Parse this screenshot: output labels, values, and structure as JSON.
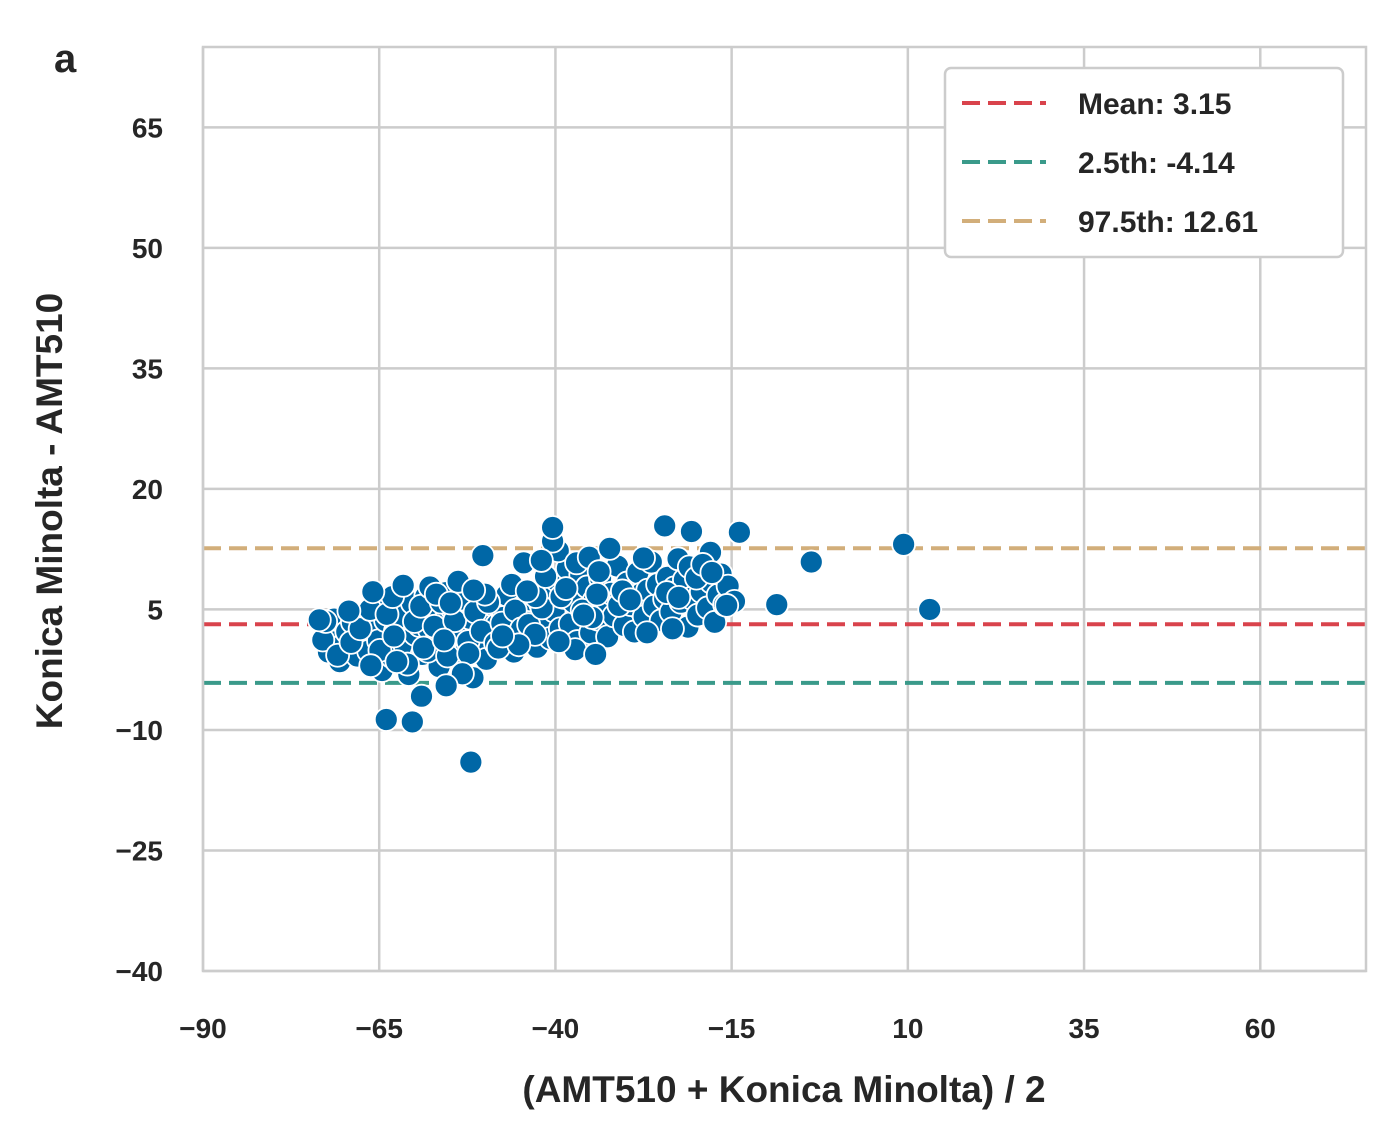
{
  "panel_label": "a",
  "chart_data": {
    "type": "scatter",
    "title": "",
    "xlabel": "(AMT510 + Konica Minolta) / 2",
    "ylabel": "Konica Minolta - AMT510",
    "xlim": [
      -90,
      75
    ],
    "ylim": [
      -40,
      75
    ],
    "xticks": [
      -90,
      -65,
      -40,
      -15,
      10,
      35,
      60
    ],
    "xtick_labels": [
      "−90",
      "−65",
      "−40",
      "−15",
      "10",
      "35",
      "60"
    ],
    "yticks": [
      -40,
      -25,
      -10,
      5,
      20,
      35,
      50,
      65
    ],
    "ytick_labels": [
      "−40",
      "−25",
      "−10",
      "5",
      "20",
      "35",
      "50",
      "65"
    ],
    "grid": true,
    "legend_position": "top-right",
    "point_color": "#0067a6",
    "reference_lines": [
      {
        "label": "Mean: 3.15",
        "y": 3.15,
        "color": "#d9434c",
        "style": "dashed"
      },
      {
        "label": "2.5th: -4.14",
        "y": -4.14,
        "color": "#3a9a8a",
        "style": "dashed"
      },
      {
        "label": "97.5th: 12.61",
        "y": 12.61,
        "color": "#d2ae7a",
        "style": "dashed"
      }
    ],
    "points": [
      [
        -72.2,
        -0.3
      ],
      [
        -71.5,
        1.8
      ],
      [
        -71.4,
        3.8
      ],
      [
        -70.6,
        -1.5
      ],
      [
        -70.2,
        0.5
      ],
      [
        -69.6,
        2.2
      ],
      [
        -68.8,
        3.4
      ],
      [
        -68.1,
        -0.8
      ],
      [
        -67.5,
        1.6
      ],
      [
        -67.0,
        4.2
      ],
      [
        -66.5,
        -0.2
      ],
      [
        -66.0,
        2.9
      ],
      [
        -65.6,
        6.4
      ],
      [
        -65.1,
        1.1
      ],
      [
        -64.6,
        -2.6
      ],
      [
        -64.1,
        3.6
      ],
      [
        -63.6,
        5.2
      ],
      [
        -63.2,
        -0.9
      ],
      [
        -62.7,
        2.3
      ],
      [
        -62.3,
        7.2
      ],
      [
        -61.8,
        4.1
      ],
      [
        -61.3,
        0.4
      ],
      [
        -60.8,
        -3.1
      ],
      [
        -60.3,
        5.8
      ],
      [
        -59.9,
        1.9
      ],
      [
        -59.3,
        3.0
      ],
      [
        -58.9,
        -0.6
      ],
      [
        -58.4,
        6.6
      ],
      [
        -57.9,
        2.5
      ],
      [
        -57.4,
        4.6
      ],
      [
        -57.0,
        0.9
      ],
      [
        -56.5,
        -2.1
      ],
      [
        -56.0,
        3.3
      ],
      [
        -55.5,
        7.1
      ],
      [
        -55.0,
        1.5
      ],
      [
        -54.6,
        5.0
      ],
      [
        -54.0,
        -0.4
      ],
      [
        -53.6,
        2.7
      ],
      [
        -53.1,
        4.9
      ],
      [
        -52.6,
        0.1
      ],
      [
        -52.1,
        3.9
      ],
      [
        -51.7,
        -3.5
      ],
      [
        -51.2,
        6.0
      ],
      [
        -50.7,
        1.3
      ],
      [
        -50.2,
        4.4
      ],
      [
        -49.8,
        -1.2
      ],
      [
        -49.3,
        2.0
      ],
      [
        -48.8,
        5.5
      ],
      [
        -48.3,
        3.1
      ],
      [
        -47.9,
        0.6
      ],
      [
        -47.4,
        4.0
      ],
      [
        -46.9,
        6.8
      ],
      [
        -46.4,
        2.4
      ],
      [
        -45.9,
        -0.3
      ],
      [
        -45.5,
        3.7
      ],
      [
        -45.0,
        5.1
      ],
      [
        -44.5,
        1.8
      ],
      [
        -44.0,
        4.3
      ],
      [
        -43.6,
        6.2
      ],
      [
        -43.1,
        2.9
      ],
      [
        -42.6,
        0.3
      ],
      [
        -42.1,
        5.7
      ],
      [
        -41.7,
        3.5
      ],
      [
        -41.2,
        7.5
      ],
      [
        -40.7,
        1.4
      ],
      [
        -40.2,
        4.8
      ],
      [
        -39.8,
        8.6
      ],
      [
        -39.3,
        2.6
      ],
      [
        -38.8,
        6.5
      ],
      [
        -38.3,
        10.1
      ],
      [
        -37.9,
        3.2
      ],
      [
        -37.4,
        5.9
      ],
      [
        -36.9,
        1.0
      ],
      [
        -36.4,
        9.3
      ],
      [
        -36.0,
        4.5
      ],
      [
        -35.5,
        7.8
      ],
      [
        -35.0,
        2.1
      ],
      [
        -34.5,
        6.1
      ],
      [
        -34.0,
        3.8
      ],
      [
        -33.6,
        8.9
      ],
      [
        -33.1,
        5.3
      ],
      [
        -32.6,
        1.6
      ],
      [
        -32.1,
        7.0
      ],
      [
        -31.7,
        4.2
      ],
      [
        -31.2,
        10.4
      ],
      [
        -30.7,
        6.7
      ],
      [
        -30.2,
        3.0
      ],
      [
        -29.8,
        8.3
      ],
      [
        -29.3,
        5.6
      ],
      [
        -28.8,
        2.2
      ],
      [
        -28.3,
        9.6
      ],
      [
        -27.9,
        6.9
      ],
      [
        -27.4,
        4.1
      ],
      [
        -26.9,
        7.4
      ],
      [
        -26.4,
        10.9
      ],
      [
        -26.0,
        5.4
      ],
      [
        -25.5,
        8.1
      ],
      [
        -25.0,
        3.6
      ],
      [
        -24.5,
        6.3
      ],
      [
        -24.1,
        9.0
      ],
      [
        -23.6,
        4.7
      ],
      [
        -23.1,
        7.7
      ],
      [
        -22.6,
        11.3
      ],
      [
        -22.2,
        5.9
      ],
      [
        -21.7,
        8.7
      ],
      [
        -21.2,
        2.8
      ],
      [
        -20.7,
        6.4
      ],
      [
        -20.3,
        9.8
      ],
      [
        -19.8,
        4.3
      ],
      [
        -19.3,
        7.2
      ],
      [
        -18.8,
        10.6
      ],
      [
        -18.4,
        5.2
      ],
      [
        -17.9,
        8.4
      ],
      [
        -17.4,
        3.4
      ],
      [
        -16.9,
        6.8
      ],
      [
        -16.5,
        9.4
      ],
      [
        -16.0,
        5.6
      ],
      [
        -15.5,
        7.9
      ],
      [
        -14.6,
        6.0
      ],
      [
        -13.9,
        14.6
      ],
      [
        -73.0,
        1.2
      ],
      [
        -72.6,
        3.5
      ],
      [
        -70.9,
        -0.7
      ],
      [
        -69.0,
        0.9
      ],
      [
        -67.7,
        2.6
      ],
      [
        -66.3,
        5.0
      ],
      [
        -64.9,
        -0.1
      ],
      [
        -63.9,
        4.4
      ],
      [
        -62.9,
        1.7
      ],
      [
        -61.0,
        -1.8
      ],
      [
        -60.0,
        3.5
      ],
      [
        -59.1,
        5.4
      ],
      [
        -58.1,
        -0.2
      ],
      [
        -57.2,
        2.9
      ],
      [
        -56.2,
        5.9
      ],
      [
        -55.3,
        -0.8
      ],
      [
        -54.3,
        3.6
      ],
      [
        -53.3,
        6.3
      ],
      [
        -52.4,
        1.0
      ],
      [
        -51.4,
        4.7
      ],
      [
        -50.5,
        2.3
      ],
      [
        -49.5,
        5.9
      ],
      [
        -48.5,
        0.8
      ],
      [
        -47.6,
        3.3
      ],
      [
        -46.7,
        1.5
      ],
      [
        -45.7,
        4.9
      ],
      [
        -44.8,
        2.6
      ],
      [
        -43.8,
        3.1
      ],
      [
        -42.9,
        1.9
      ],
      [
        -41.9,
        5.2
      ],
      [
        -73.5,
        3.7
      ],
      [
        -69.3,
        4.8
      ],
      [
        -66.2,
        -2.0
      ],
      [
        -62.5,
        -1.5
      ],
      [
        -58.7,
        0.2
      ],
      [
        -55.8,
        1.2
      ],
      [
        -52.3,
        -0.5
      ],
      [
        -48.1,
        0.2
      ],
      [
        -45.2,
        0.6
      ],
      [
        -63.1,
        6.6
      ],
      [
        -57.8,
        7.8
      ],
      [
        -53.8,
        8.5
      ],
      [
        -50.0,
        6.9
      ],
      [
        -46.2,
        8.1
      ],
      [
        -42.8,
        6.6
      ],
      [
        -41.4,
        9.1
      ],
      [
        -39.6,
        12.3
      ],
      [
        -40.4,
        13.5
      ],
      [
        -37.0,
        10.8
      ],
      [
        -35.2,
        11.5
      ],
      [
        -33.8,
        9.7
      ],
      [
        -65.9,
        7.2
      ],
      [
        -61.6,
        8.0
      ],
      [
        -56.9,
        6.9
      ],
      [
        -54.9,
        5.8
      ],
      [
        -51.6,
        7.4
      ],
      [
        -52.0,
        -14.0
      ],
      [
        -64.0,
        -8.7
      ],
      [
        -60.3,
        -9.0
      ],
      [
        -59.0,
        -5.8
      ],
      [
        -53.2,
        -3.0
      ],
      [
        -55.5,
        -4.5
      ],
      [
        -50.3,
        11.7
      ],
      [
        -40.4,
        15.2
      ],
      [
        -36.2,
        4.9
      ],
      [
        -37.2,
        0.0
      ],
      [
        -34.3,
        -0.6
      ],
      [
        -39.5,
        1.0
      ],
      [
        -27.0,
        2.1
      ],
      [
        -24.5,
        15.4
      ],
      [
        -20.7,
        14.7
      ],
      [
        -18.0,
        12.1
      ],
      [
        -23.4,
        2.6
      ],
      [
        -15.7,
        5.5
      ],
      [
        -3.7,
        10.9
      ],
      [
        9.4,
        13.1
      ],
      [
        13.1,
        5.0
      ],
      [
        -8.6,
        5.6
      ],
      [
        -32.3,
        12.6
      ],
      [
        -39.2,
        6.6
      ],
      [
        -34.8,
        4.0
      ],
      [
        -31.0,
        5.5
      ],
      [
        -47.5,
        1.7
      ],
      [
        -44.5,
        10.8
      ],
      [
        -44.0,
        7.3
      ],
      [
        -42.0,
        11.1
      ],
      [
        -38.5,
        7.6
      ],
      [
        -36.0,
        4.3
      ],
      [
        -34.1,
        6.9
      ],
      [
        -30.5,
        7.3
      ],
      [
        -29.4,
        6.2
      ],
      [
        -27.5,
        11.4
      ],
      [
        -24.2,
        7.1
      ],
      [
        -22.5,
        6.5
      ],
      [
        -21.0,
        10.3
      ],
      [
        -20.0,
        8.9
      ],
      [
        -19.1,
        10.6
      ],
      [
        -17.8,
        9.6
      ]
    ]
  }
}
